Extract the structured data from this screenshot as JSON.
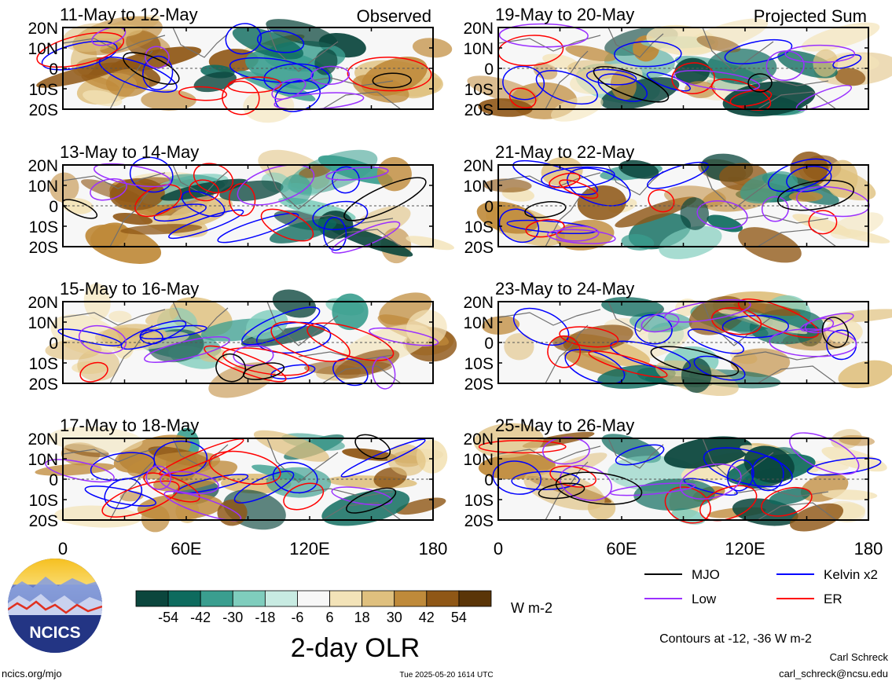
{
  "chart_data": {
    "type": "heatmap",
    "title": "2-day OLR",
    "units": "W m-2",
    "contour_note": "Contours at -12, -36 W m-2",
    "columns": [
      {
        "heading": "Observed",
        "panels": [
          "11-May to 12-May",
          "13-May to 14-May",
          "15-May to 16-May",
          "17-May to 18-May"
        ]
      },
      {
        "heading": "Projected Sum",
        "panels": [
          "19-May to 20-May",
          "21-May to 22-May",
          "23-May to 24-May",
          "25-May to 26-May"
        ]
      }
    ],
    "lat_ticks": [
      "20N",
      "10N",
      "0",
      "10S",
      "20S"
    ],
    "lon_ticks": [
      "0",
      "60E",
      "120E",
      "180"
    ],
    "lat_range": [
      -20,
      20
    ],
    "lon_range": [
      0,
      180
    ],
    "colorbar": {
      "ticks": [
        "-54",
        "-42",
        "-30",
        "-18",
        "-6",
        "6",
        "18",
        "30",
        "42",
        "54"
      ],
      "colors": [
        "#0b463d",
        "#0e6b5e",
        "#3a9e8f",
        "#7fcdbd",
        "#c8ebe2",
        "#f7f7f7",
        "#f3e3b8",
        "#dfc07e",
        "#bf8a3a",
        "#8f5716",
        "#5a3507"
      ]
    },
    "legend": [
      {
        "label": "MJO",
        "color": "#000000"
      },
      {
        "label": "Kelvin x2",
        "color": "#0000ff"
      },
      {
        "label": "Low",
        "color": "#9b30ff"
      },
      {
        "label": "ER",
        "color": "#ff0000"
      }
    ]
  },
  "logo": {
    "text": "NCICS"
  },
  "footer": {
    "url": "ncics.org/mjo",
    "timestamp": "Tue 2025-05-20 1614 UTC",
    "author": "Carl Schreck",
    "email": "carl_schreck@ncsu.edu"
  }
}
